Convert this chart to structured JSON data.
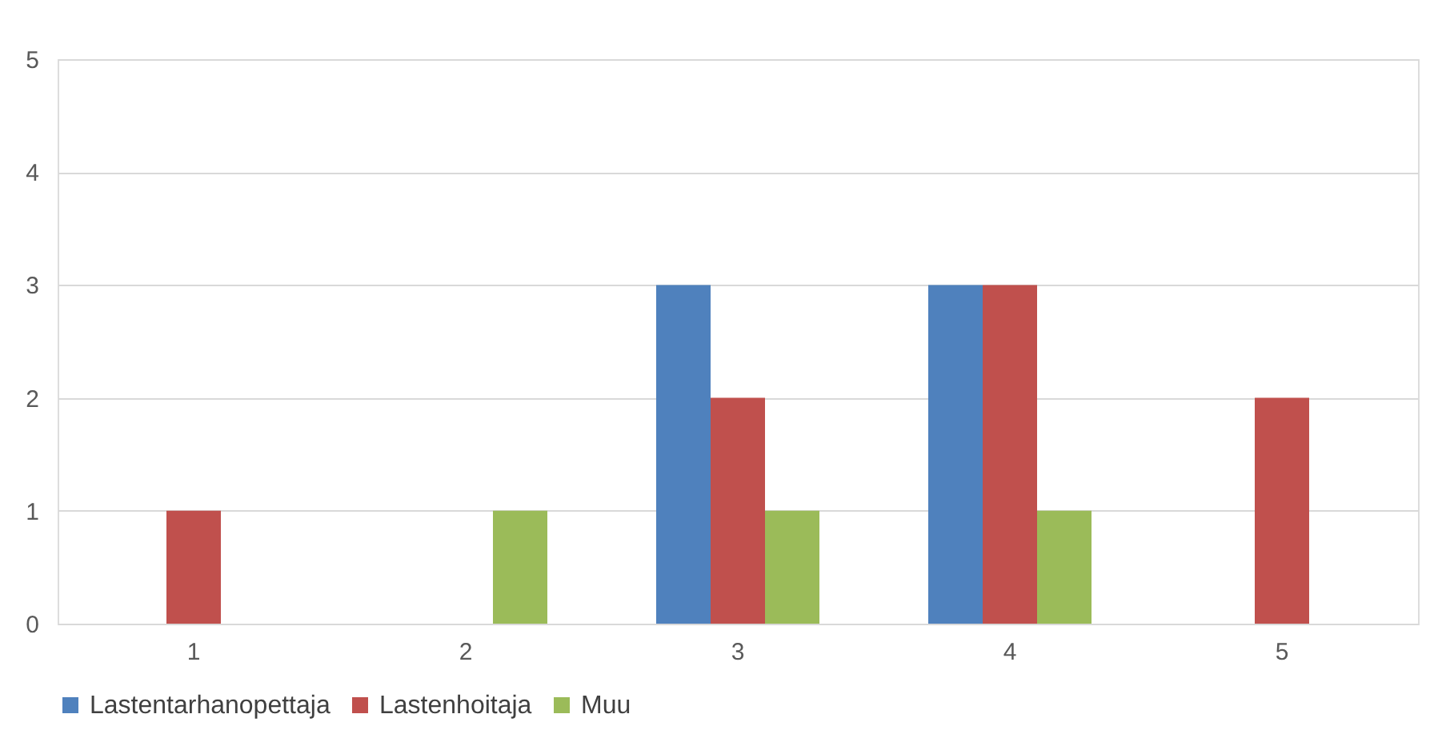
{
  "chart_data": {
    "type": "bar",
    "categories": [
      "1",
      "2",
      "3",
      "4",
      "5"
    ],
    "series": [
      {
        "name": "Lastentarhanopettaja",
        "color": "#4f81bd",
        "values": [
          0,
          0,
          3,
          3,
          0
        ]
      },
      {
        "name": "Lastenhoitaja",
        "color": "#c0504d",
        "values": [
          1,
          0,
          2,
          3,
          2
        ]
      },
      {
        "name": "Muu",
        "color": "#9bbb59",
        "values": [
          0,
          1,
          1,
          1,
          0
        ]
      }
    ],
    "ylim": [
      0,
      5
    ],
    "yticks": [
      0,
      1,
      2,
      3,
      4,
      5
    ],
    "grid": "y",
    "legend": "bottom"
  }
}
